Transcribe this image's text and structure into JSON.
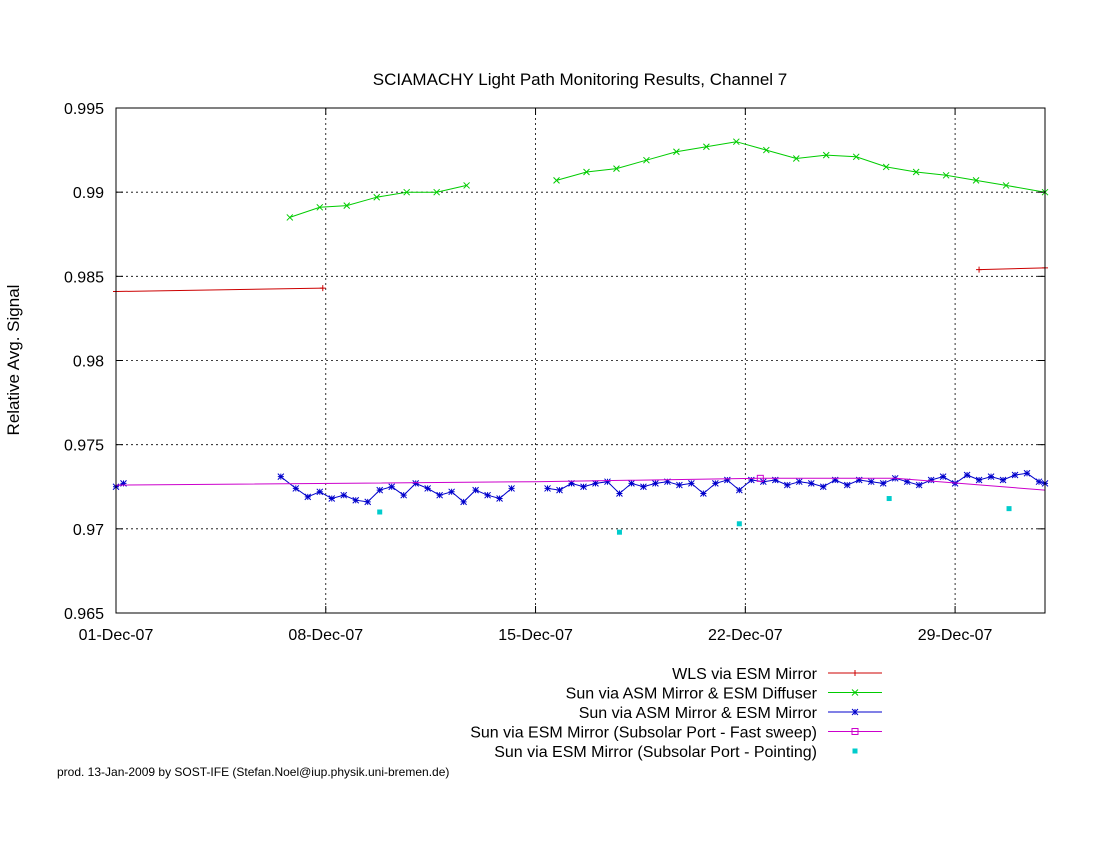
{
  "chart_data": {
    "type": "line",
    "title": "SCIAMACHY Light Path Monitoring Results, Channel 7",
    "xlabel": "",
    "ylabel": "Relative Avg. Signal",
    "x_tick_labels": [
      "01-Dec-07",
      "08-Dec-07",
      "15-Dec-07",
      "22-Dec-07",
      "29-Dec-07"
    ],
    "x_tick_values": [
      0,
      7,
      14,
      21,
      28
    ],
    "xlim": [
      0,
      31
    ],
    "ylim": [
      0.965,
      0.995
    ],
    "y_ticks": [
      0.965,
      0.97,
      0.975,
      0.98,
      0.985,
      0.99,
      0.995
    ],
    "y_tick_labels": [
      "0.965",
      "0.97",
      "0.975",
      "0.98",
      "0.985",
      "0.99",
      "0.995"
    ],
    "grid": "vertical dashed at each x tick; horizontal dashed at each y tick",
    "legend_position": "below plot, right-aligned",
    "footer": "prod. 13-Jan-2009 by SOST-IFE (Stefan.Noel@iup.physik.uni-bremen.de)",
    "series": [
      {
        "name": "WLS via ESM Mirror",
        "color": "#cc0000",
        "marker": "plus",
        "segments": [
          [
            [
              0,
              0.9841
            ],
            [
              6.9,
              0.9843
            ]
          ],
          [
            [
              28.8,
              0.9854
            ],
            [
              31,
              0.9855
            ]
          ]
        ]
      },
      {
        "name": "Sun via ASM Mirror & ESM Diffuser",
        "color": "#00cc00",
        "marker": "cross",
        "segments": [
          [
            [
              5.8,
              0.9885
            ],
            [
              6.8,
              0.9891
            ],
            [
              7.7,
              0.9892
            ],
            [
              8.7,
              0.9897
            ],
            [
              9.7,
              0.99
            ],
            [
              10.7,
              0.99
            ],
            [
              11.7,
              0.9904
            ]
          ],
          [
            [
              14.7,
              0.9907
            ],
            [
              15.7,
              0.9912
            ],
            [
              16.7,
              0.9914
            ],
            [
              17.7,
              0.9919
            ],
            [
              18.7,
              0.9924
            ],
            [
              19.7,
              0.9927
            ],
            [
              20.7,
              0.993
            ],
            [
              21.7,
              0.9925
            ],
            [
              22.7,
              0.992
            ],
            [
              23.7,
              0.9922
            ],
            [
              24.7,
              0.9921
            ],
            [
              25.7,
              0.9915
            ],
            [
              26.7,
              0.9912
            ],
            [
              27.7,
              0.991
            ],
            [
              28.7,
              0.9907
            ],
            [
              29.7,
              0.9904
            ],
            [
              31,
              0.99
            ]
          ]
        ]
      },
      {
        "name": "Sun via ASM Mirror & ESM Mirror",
        "color": "#0000cc",
        "marker": "star",
        "segments": [
          [
            [
              0,
              0.9725
            ],
            [
              0.25,
              0.9727
            ]
          ],
          [
            [
              5.5,
              0.9731
            ],
            [
              6.0,
              0.9724
            ],
            [
              6.4,
              0.9719
            ],
            [
              6.8,
              0.9722
            ],
            [
              7.2,
              0.9718
            ],
            [
              7.6,
              0.972
            ],
            [
              8.0,
              0.9717
            ],
            [
              8.4,
              0.9716
            ],
            [
              8.8,
              0.9723
            ],
            [
              9.2,
              0.9725
            ],
            [
              9.6,
              0.972
            ],
            [
              10.0,
              0.9727
            ],
            [
              10.4,
              0.9724
            ],
            [
              10.8,
              0.972
            ],
            [
              11.2,
              0.9722
            ],
            [
              11.6,
              0.9716
            ],
            [
              12.0,
              0.9723
            ],
            [
              12.4,
              0.972
            ],
            [
              12.8,
              0.9718
            ],
            [
              13.2,
              0.9724
            ]
          ],
          [
            [
              14.4,
              0.9724
            ],
            [
              14.8,
              0.9723
            ],
            [
              15.2,
              0.9727
            ],
            [
              15.6,
              0.9725
            ],
            [
              16.0,
              0.9727
            ],
            [
              16.4,
              0.9728
            ],
            [
              16.8,
              0.9721
            ],
            [
              17.2,
              0.9727
            ],
            [
              17.6,
              0.9725
            ],
            [
              18.0,
              0.9727
            ],
            [
              18.4,
              0.9728
            ],
            [
              18.8,
              0.9726
            ],
            [
              19.2,
              0.9727
            ],
            [
              19.6,
              0.9721
            ],
            [
              20.0,
              0.9727
            ],
            [
              20.4,
              0.9729
            ],
            [
              20.8,
              0.9723
            ],
            [
              21.2,
              0.9729
            ],
            [
              21.6,
              0.9728
            ],
            [
              22.0,
              0.9729
            ],
            [
              22.4,
              0.9726
            ],
            [
              22.8,
              0.9728
            ],
            [
              23.2,
              0.9727
            ],
            [
              23.6,
              0.9725
            ],
            [
              24.0,
              0.9729
            ],
            [
              24.4,
              0.9726
            ],
            [
              24.8,
              0.9729
            ],
            [
              25.2,
              0.9728
            ],
            [
              25.6,
              0.9727
            ],
            [
              26.0,
              0.973
            ],
            [
              26.4,
              0.9728
            ],
            [
              26.8,
              0.9726
            ],
            [
              27.2,
              0.9729
            ],
            [
              27.6,
              0.9731
            ],
            [
              28.0,
              0.9727
            ],
            [
              28.4,
              0.9732
            ],
            [
              28.8,
              0.9729
            ],
            [
              29.2,
              0.9731
            ],
            [
              29.6,
              0.9729
            ],
            [
              30.0,
              0.9732
            ],
            [
              30.4,
              0.9733
            ],
            [
              30.8,
              0.9728
            ],
            [
              31.0,
              0.9727
            ]
          ]
        ]
      },
      {
        "name": "Sun via ESM Mirror (Subsolar Port - Fast sweep)",
        "color": "#cc00cc",
        "marker": "square",
        "segments": [
          [
            [
              0,
              0.9726
            ],
            [
              14,
              0.9728
            ],
            [
              21.5,
              0.973
            ],
            [
              26,
              0.973
            ],
            [
              31,
              0.9723
            ]
          ]
        ]
      },
      {
        "name": "Sun via ESM Mirror (Subsolar Port - Pointing)",
        "color": "#00cccc",
        "marker": "filled-square",
        "points": [
          [
            8.8,
            0.971
          ],
          [
            16.8,
            0.9698
          ],
          [
            20.8,
            0.9703
          ],
          [
            25.8,
            0.9718
          ],
          [
            29.8,
            0.9712
          ]
        ]
      }
    ]
  }
}
